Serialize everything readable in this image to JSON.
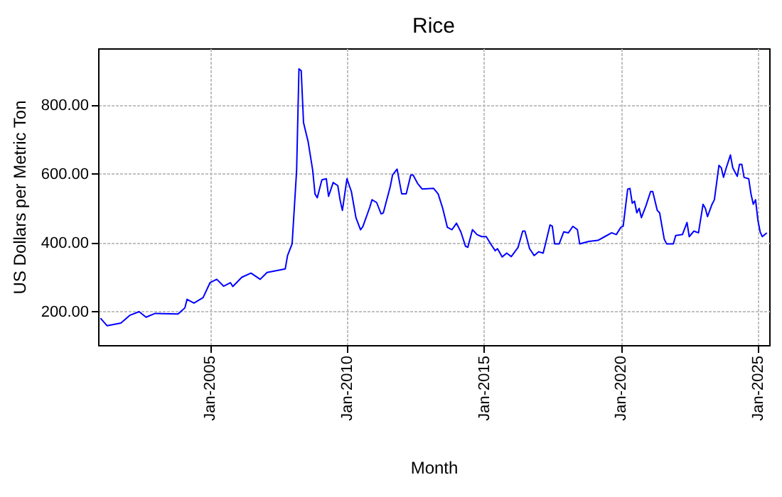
{
  "chart_data": {
    "type": "line",
    "title": "Rice",
    "xlabel": "Month",
    "ylabel": "US Dollars per Metric Ton",
    "x": [
      "2001-01",
      "2001-04",
      "2001-10",
      "2002-02",
      "2002-06",
      "2002-09",
      "2003-01",
      "2003-11",
      "2004-02",
      "2004-03",
      "2004-06",
      "2004-10",
      "2005-01",
      "2005-04",
      "2005-07",
      "2005-10",
      "2005-11",
      "2006-03",
      "2006-07",
      "2006-11",
      "2007-02",
      "2007-10",
      "2007-11",
      "2008-01",
      "2008-03",
      "2008-04",
      "2008-05",
      "2008-06",
      "2008-08",
      "2008-10",
      "2008-11",
      "2008-12",
      "2009-02",
      "2009-04",
      "2009-05",
      "2009-07",
      "2009-09",
      "2009-10",
      "2009-11",
      "2010-01",
      "2010-03",
      "2010-05",
      "2010-07",
      "2010-08",
      "2010-11",
      "2010-12",
      "2011-02",
      "2011-04",
      "2011-05",
      "2011-08",
      "2011-09",
      "2011-11",
      "2012-01",
      "2012-03",
      "2012-05",
      "2012-06",
      "2012-08",
      "2012-10",
      "2013-03",
      "2013-05",
      "2013-07",
      "2013-09",
      "2013-11",
      "2014-01",
      "2014-03",
      "2014-05",
      "2014-06",
      "2014-08",
      "2014-10",
      "2014-12",
      "2015-02",
      "2015-04",
      "2015-06",
      "2015-07",
      "2015-09",
      "2015-11",
      "2016-01",
      "2016-04",
      "2016-06",
      "2016-07",
      "2016-09",
      "2016-11",
      "2017-01",
      "2017-03",
      "2017-04",
      "2017-06",
      "2017-07",
      "2017-08",
      "2017-10",
      "2017-12",
      "2018-02",
      "2018-04",
      "2018-06",
      "2018-07",
      "2018-11",
      "2019-03",
      "2019-06",
      "2019-09",
      "2019-11",
      "2020-01",
      "2020-02",
      "2020-04",
      "2020-05",
      "2020-06",
      "2020-07",
      "2020-08",
      "2020-09",
      "2020-10",
      "2020-12",
      "2021-02",
      "2021-03",
      "2021-05",
      "2021-06",
      "2021-08",
      "2021-09",
      "2021-12",
      "2022-01",
      "2022-04",
      "2022-06",
      "2022-07",
      "2022-09",
      "2022-11",
      "2023-01",
      "2023-02",
      "2023-03",
      "2023-05",
      "2023-06",
      "2023-08",
      "2023-09",
      "2023-10",
      "2023-11",
      "2024-01",
      "2024-02",
      "2024-04",
      "2024-05",
      "2024-06",
      "2024-07",
      "2024-09",
      "2024-10",
      "2024-11",
      "2024-12",
      "2025-01",
      "2025-02",
      "2025-03",
      "2025-05"
    ],
    "series": [
      {
        "color": "#0000ff",
        "values": [
          181,
          159,
          167,
          190,
          200,
          184,
          195,
          193,
          211,
          236,
          225,
          241,
          284,
          294,
          274,
          284,
          273,
          300,
          312,
          294,
          314,
          324,
          363,
          397,
          611,
          905,
          900,
          749,
          694,
          611,
          542,
          531,
          583,
          586,
          535,
          575,
          566,
          525,
          494,
          586,
          549,
          473,
          438,
          447,
          503,
          525,
          517,
          484,
          487,
          563,
          597,
          614,
          542,
          542,
          597,
          597,
          572,
          556,
          558,
          542,
          500,
          445,
          438,
          457,
          431,
          390,
          387,
          438,
          424,
          418,
          418,
          397,
          377,
          383,
          359,
          370,
          360,
          387,
          434,
          434,
          383,
          363,
          374,
          370,
          397,
          452,
          448,
          397,
          397,
          432,
          429,
          448,
          438,
          397,
          404,
          407,
          418,
          429,
          424,
          445,
          448,
          556,
          558,
          515,
          521,
          487,
          500,
          473,
          508,
          549,
          549,
          494,
          487,
          411,
          397,
          397,
          421,
          424,
          459,
          418,
          434,
          429,
          512,
          500,
          476,
          512,
          525,
          625,
          618,
          590,
          614,
          655,
          618,
          593,
          628,
          628,
          590,
          586,
          542,
          512,
          525,
          466,
          431,
          418,
          429
        ]
      }
    ],
    "xlim": [
      "2000-12",
      "2025-06"
    ],
    "xticks": [
      {
        "value": "2005-01",
        "label": "Jan-2005"
      },
      {
        "value": "2010-01",
        "label": "Jan-2010"
      },
      {
        "value": "2015-01",
        "label": "Jan-2015"
      },
      {
        "value": "2020-01",
        "label": "Jan-2020"
      },
      {
        "value": "2025-01",
        "label": "Jan-2025"
      }
    ],
    "ylim": [
      103,
      965
    ],
    "yticks": [
      {
        "value": 200,
        "label": "200.00"
      },
      {
        "value": 400,
        "label": "400.00"
      },
      {
        "value": 600,
        "label": "600.00"
      },
      {
        "value": 800,
        "label": "800.00"
      }
    ],
    "grid": true,
    "marker": "none",
    "line_style": "solid"
  }
}
